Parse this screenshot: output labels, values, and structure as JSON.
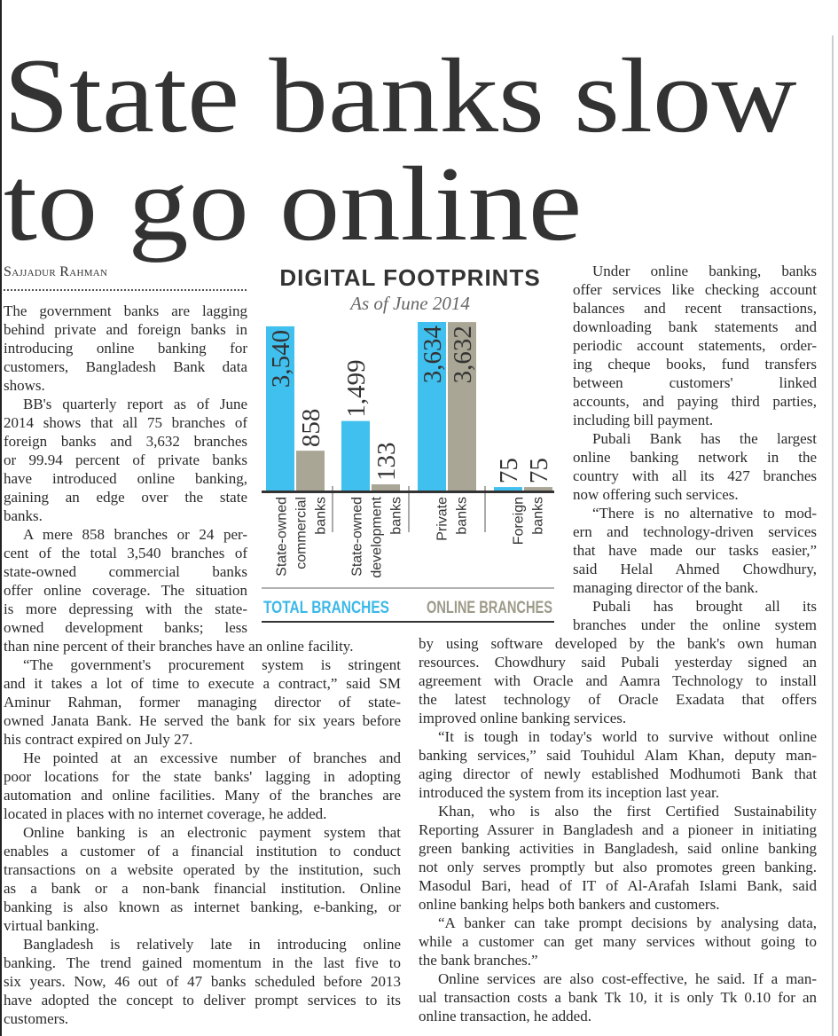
{
  "headline": [
    "State banks slow",
    "to go online"
  ],
  "byline": "Sajjadur Rahman",
  "columns": {
    "left_top": [
      [
        "The government banks are lagging",
        "behind private and foreign banks in",
        "introducing online banking for",
        "customers, Bangladesh Bank data",
        "shows."
      ],
      [
        "BB's quarterly report as of June",
        "2014 shows that all 75 branches of",
        "foreign banks and 3,632 branches",
        "or 99.94 percent of private banks",
        "have introduced online banking,",
        "gaining an edge over the state",
        "banks."
      ],
      [
        "A mere 858 branches or 24 per-",
        "cent of the total 3,540 branches of",
        "state-owned commercial banks",
        "offer online coverage. The situation",
        "is more depressing with the state-",
        "owned development banks; less"
      ]
    ],
    "left_bottom": [
      [
        "than nine percent of their branches have an online facility."
      ],
      [
        "“The government's procurement system is stringent",
        "and it takes a lot of time to execute a contract,” said SM",
        "Aminur Rahman, former managing director of state-",
        "owned Janata Bank. He served the bank for six years before",
        "his contract expired on July 27."
      ],
      [
        "He pointed at an excessive number of branches and",
        "poor locations for the state banks' lagging in adopting",
        "automation and online facilities. Many of the branches are",
        "located in places with no internet coverage, he added."
      ],
      [
        "Online banking is an electronic payment system that",
        "enables a customer of a financial institution to conduct",
        "transactions on a website operated by the institution, such",
        "as a bank or a non-bank financial institution. Online",
        "banking is also known as internet banking, e-banking, or",
        "virtual banking."
      ],
      [
        "Bangladesh is relatively late in introducing online",
        "banking. The trend gained momentum in the last five to",
        "six years. Now, 46 out of 47 banks scheduled before 2013",
        "have adopted the concept to deliver prompt services to its",
        "customers."
      ]
    ],
    "right_top": [
      [
        "Under online banking, banks",
        "offer services like checking account",
        "balances and recent transactions,",
        "downloading bank statements and",
        "periodic account statements, order-",
        "ing cheque books, fund transfers",
        "between customers' linked",
        "accounts, and paying third parties,",
        "including bill payment."
      ],
      [
        "Pubali Bank has the largest",
        "online banking network in the",
        "country with all its 427 branches",
        "now offering such services."
      ],
      [
        "“There is no alternative to mod-",
        "ern and technology-driven services",
        "that have made our tasks easier,”",
        "said Helal Ahmed Chowdhury,",
        "managing director of the bank."
      ],
      [
        "Pubali has brought all its",
        "branches under the online system"
      ]
    ],
    "right_bottom": [
      [
        "by using software developed by the bank's own human",
        "resources. Chowdhury said Pubali yesterday signed an",
        "agreement with Oracle and Aamra Technology to install",
        "the latest technology of Oracle Exadata that offers",
        "improved online banking services."
      ],
      [
        "“It is tough in today's world to survive without online",
        "banking services,” said Touhidul Alam Khan, deputy man-",
        "aging director of newly established Modhumoti Bank that",
        "introduced the system from its inception last year."
      ],
      [
        "Khan, who is also the first Certified Sustainability",
        "Reporting Assurer in Bangladesh and a pioneer in initiating",
        "green banking activities in Bangladesh, said online banking",
        "not only serves promptly but also promotes green banking.",
        "Masodul Bari, head of IT of Al-Arafah Islami Bank, said",
        "online banking helps both bankers and customers."
      ],
      [
        "“A banker can take prompt decisions by analysing data,",
        "while a customer can get many services without going to",
        "the bank branches.”"
      ],
      [
        "Online services are also cost-effective, he said. If a man-",
        "ual transaction costs a bank Tk 10, it is only Tk 0.10 for an",
        "online transaction, he added."
      ]
    ]
  },
  "chart_data": {
    "type": "bar",
    "title": "DIGITAL FOOTPRINTS",
    "subtitle": "As of June 2014",
    "categories": [
      [
        "State-owned",
        "commercial",
        "banks"
      ],
      [
        "State-owned",
        "development",
        "banks"
      ],
      [
        "Private",
        "banks"
      ],
      [
        "Foreign",
        "banks"
      ]
    ],
    "series": [
      {
        "name": "TOTAL BRANCHES",
        "color": "#40c0ee",
        "values": [
          3540,
          1499,
          3634,
          75
        ],
        "labels": [
          "3,540",
          "1,499",
          "3,634",
          "75"
        ]
      },
      {
        "name": "ONLINE BRANCHES",
        "color": "#a9a696",
        "values": [
          858,
          133,
          3632,
          75
        ],
        "labels": [
          "858",
          "133",
          "3,632",
          "75"
        ]
      }
    ],
    "ylim": [
      0,
      3634
    ],
    "grid": false,
    "legend": "bottom"
  }
}
